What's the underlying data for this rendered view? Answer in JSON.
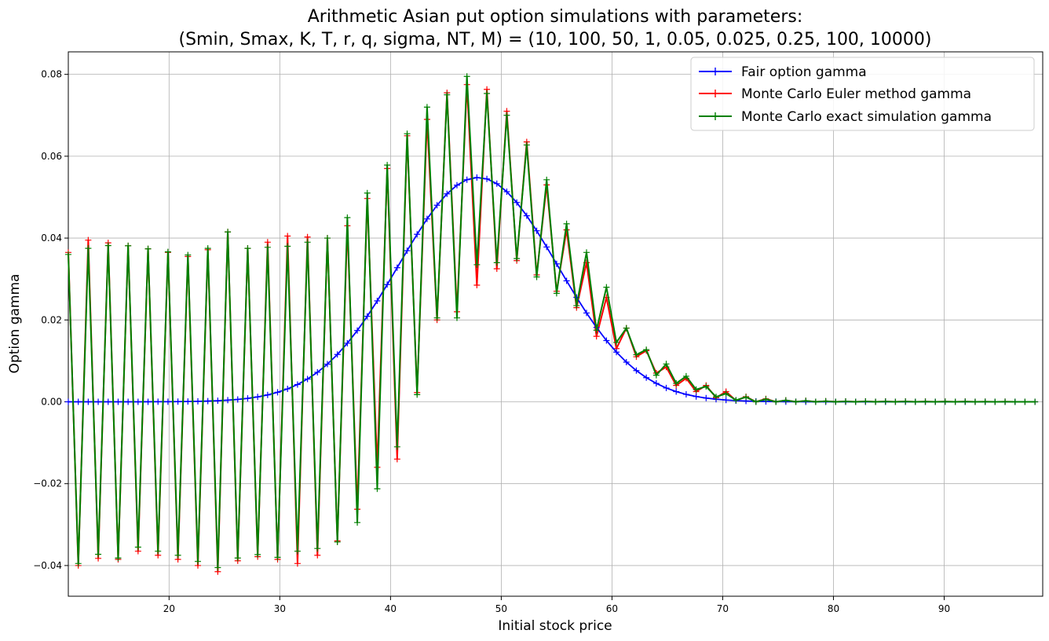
{
  "chart_data": {
    "type": "line",
    "title": "Arithmetic Asian put option simulations with parameters:",
    "subtitle": "(Smin, Smax, K, T, r, q, sigma, NT, M) = (10, 100, 50, 1, 0.05, 0.025, 0.25, 100, 10000)",
    "xlabel": "Initial stock price",
    "ylabel": "Option gamma",
    "xlim": [
      10.9,
      98.9
    ],
    "ylim": [
      -0.0475,
      0.0855
    ],
    "xticks": [
      20,
      30,
      40,
      50,
      60,
      70,
      80,
      90
    ],
    "yticks": [
      -0.04,
      -0.02,
      0.0,
      0.02,
      0.04,
      0.06,
      0.08
    ],
    "xtick_labels": [
      "20",
      "30",
      "40",
      "50",
      "60",
      "70",
      "80",
      "90"
    ],
    "ytick_labels": [
      "−0.04",
      "−0.02",
      "0.00",
      "0.02",
      "0.04",
      "0.06",
      "0.08"
    ],
    "grid": true,
    "legend_position": "top-right",
    "x_range": {
      "start": 10.9,
      "end": 98.9,
      "step": 0.9
    },
    "series": [
      {
        "name": "Fair option gamma",
        "color": "#0000ff",
        "marker": "+",
        "model": "gaussian",
        "peak_x": 47.9,
        "peak_y": 0.0548,
        "width": 7.2
      },
      {
        "name": "Monte Carlo Euler method gamma",
        "color": "#ff0000",
        "marker": "+",
        "model": "zigzag",
        "high_points": [
          [
            10.9,
            0.0365
          ],
          [
            11.8,
            0.036
          ],
          [
            12.7,
            0.0395
          ],
          [
            15.4,
            0.0385
          ],
          [
            19,
            0.037
          ],
          [
            22.6,
            0.035
          ],
          [
            25.3,
            0.0415
          ],
          [
            27.1,
            0.0375
          ],
          [
            30.7,
            0.0405
          ],
          [
            34.3,
            0.04
          ],
          [
            36.1,
            0.043
          ],
          [
            38.8,
            0.053
          ],
          [
            41.5,
            0.065
          ],
          [
            43.3,
            0.069
          ],
          [
            45.1,
            0.0755
          ],
          [
            46.9,
            0.0775
          ],
          [
            47.8,
            0.079
          ],
          [
            50.5,
            0.071
          ],
          [
            51.4,
            0.067
          ],
          [
            53.2,
            0.06
          ],
          [
            55,
            0.046
          ],
          [
            56.8,
            0.038
          ],
          [
            58.6,
            0.03
          ],
          [
            60.4,
            0.021
          ],
          [
            62.2,
            0.015
          ],
          [
            64,
            0.01
          ],
          [
            65.8,
            0.007
          ],
          [
            67.6,
            0.0045
          ],
          [
            69.4,
            0.0035
          ],
          [
            71.2,
            0.0015
          ],
          [
            73,
            0.001
          ],
          [
            75,
            0.0004
          ],
          [
            80,
            0.0001
          ],
          [
            98.9,
            0.0
          ]
        ],
        "low_points": [
          [
            11.8,
            -0.04
          ],
          [
            12.7,
            -0.037
          ],
          [
            14.5,
            -0.0395
          ],
          [
            17.2,
            -0.0365
          ],
          [
            20.8,
            -0.0385
          ],
          [
            24.4,
            -0.0415
          ],
          [
            27.1,
            -0.0375
          ],
          [
            29.8,
            -0.0385
          ],
          [
            31.6,
            -0.0395
          ],
          [
            34.3,
            -0.0365
          ],
          [
            36.1,
            -0.0315
          ],
          [
            37.9,
            -0.021
          ],
          [
            39.7,
            -0.011
          ],
          [
            40.6,
            -0.014
          ],
          [
            41.5,
            -0.005
          ],
          [
            43.3,
            0.0095
          ],
          [
            44.2,
            0.02
          ],
          [
            46,
            0.022
          ],
          [
            47.8,
            0.0285
          ],
          [
            49.6,
            0.0325
          ],
          [
            51.4,
            0.0345
          ],
          [
            53.2,
            0.031
          ],
          [
            55,
            0.027
          ],
          [
            56.8,
            0.023
          ],
          [
            58.6,
            0.016
          ],
          [
            60.4,
            0.013
          ],
          [
            62.2,
            0.011
          ],
          [
            64,
            0.007
          ],
          [
            65.8,
            0.004
          ],
          [
            67.6,
            0.0025
          ],
          [
            69.4,
            0.001
          ],
          [
            71.2,
            0.0003
          ],
          [
            73,
            0.0
          ],
          [
            98.9,
            0.0
          ]
        ]
      },
      {
        "name": "Monte Carlo exact simulation gamma",
        "color": "#008000",
        "marker": "+",
        "model": "zigzag",
        "high_points": [
          [
            10.9,
            0.036
          ],
          [
            11.8,
            0.0365
          ],
          [
            12.7,
            0.0375
          ],
          [
            15.4,
            0.0385
          ],
          [
            19,
            0.037
          ],
          [
            22.6,
            0.0355
          ],
          [
            25.3,
            0.0415
          ],
          [
            27.1,
            0.0375
          ],
          [
            30.7,
            0.038
          ],
          [
            34.3,
            0.04
          ],
          [
            36.1,
            0.045
          ],
          [
            38.8,
            0.054
          ],
          [
            41.5,
            0.0655
          ],
          [
            43.3,
            0.072
          ],
          [
            45.1,
            0.075
          ],
          [
            46.9,
            0.0795
          ],
          [
            47.8,
            0.078
          ],
          [
            50.5,
            0.07
          ],
          [
            51.4,
            0.0655
          ],
          [
            53.2,
            0.06
          ],
          [
            55,
            0.0485
          ],
          [
            56.8,
            0.0385
          ],
          [
            58.6,
            0.0345
          ],
          [
            60.4,
            0.0215
          ],
          [
            62.2,
            0.0145
          ],
          [
            64,
            0.011
          ],
          [
            65.8,
            0.0075
          ],
          [
            67.6,
            0.005
          ],
          [
            69.4,
            0.0025
          ],
          [
            71.2,
            0.0015
          ],
          [
            73,
            0.0008
          ],
          [
            75,
            0.0004
          ],
          [
            80,
            0.0001
          ],
          [
            98.9,
            0.0
          ]
        ],
        "low_points": [
          [
            11.8,
            -0.0395
          ],
          [
            12.7,
            -0.035
          ],
          [
            14.5,
            -0.0395
          ],
          [
            17.2,
            -0.0355
          ],
          [
            20.8,
            -0.0375
          ],
          [
            24.4,
            -0.0405
          ],
          [
            27.1,
            -0.037
          ],
          [
            29.8,
            -0.038
          ],
          [
            31.6,
            -0.0365
          ],
          [
            34.3,
            -0.0355
          ],
          [
            36.1,
            -0.033
          ],
          [
            37.9,
            -0.026
          ],
          [
            39.7,
            -0.0165
          ],
          [
            40.6,
            -0.011
          ],
          [
            41.5,
            -0.007
          ],
          [
            43.3,
            0.0105
          ],
          [
            44.2,
            0.0205
          ],
          [
            46,
            0.0205
          ],
          [
            47.8,
            0.0335
          ],
          [
            49.6,
            0.034
          ],
          [
            51.4,
            0.035
          ],
          [
            53.2,
            0.0305
          ],
          [
            55,
            0.0265
          ],
          [
            56.8,
            0.0235
          ],
          [
            58.6,
            0.0175
          ],
          [
            60.4,
            0.0145
          ],
          [
            62.2,
            0.0115
          ],
          [
            64,
            0.0065
          ],
          [
            65.8,
            0.0045
          ],
          [
            67.6,
            0.003
          ],
          [
            69.4,
            0.0012
          ],
          [
            71.2,
            0.0004
          ],
          [
            73,
            0.0
          ],
          [
            98.9,
            0.0
          ]
        ]
      }
    ]
  }
}
